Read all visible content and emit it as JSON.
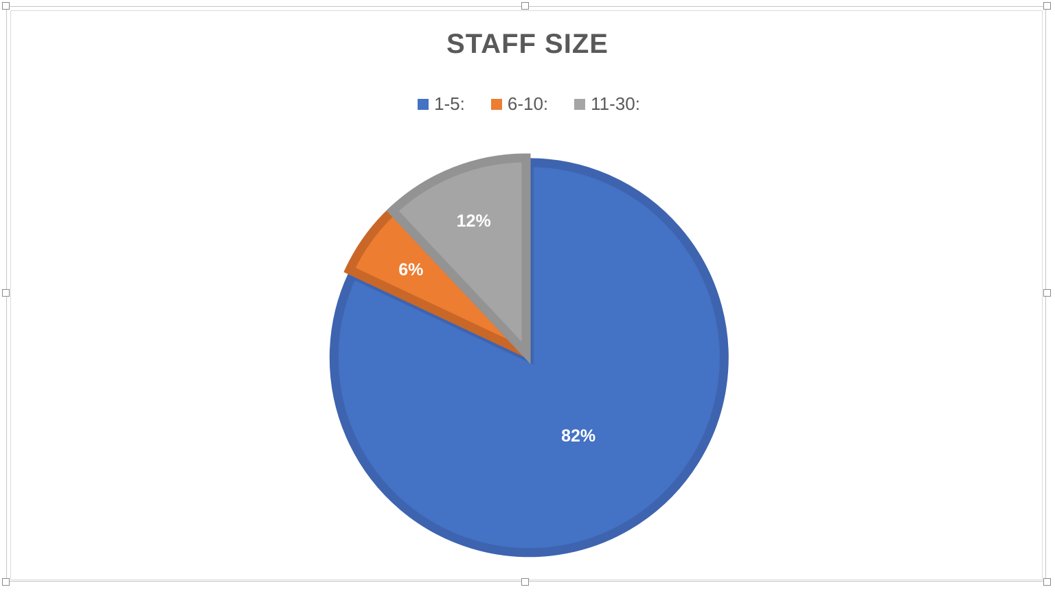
{
  "chart_data": {
    "type": "pie",
    "title": "STAFF SIZE",
    "categories": [
      "1-5:",
      "6-10:",
      "11-30:"
    ],
    "values": [
      82,
      6,
      12
    ],
    "labels": [
      "82%",
      "6%",
      "12%"
    ],
    "colors": [
      "#4472c4",
      "#ed7d31",
      "#a5a5a5"
    ],
    "border_colors": [
      "#3e64b0",
      "#c96728",
      "#939393"
    ],
    "legend_position": "top"
  }
}
